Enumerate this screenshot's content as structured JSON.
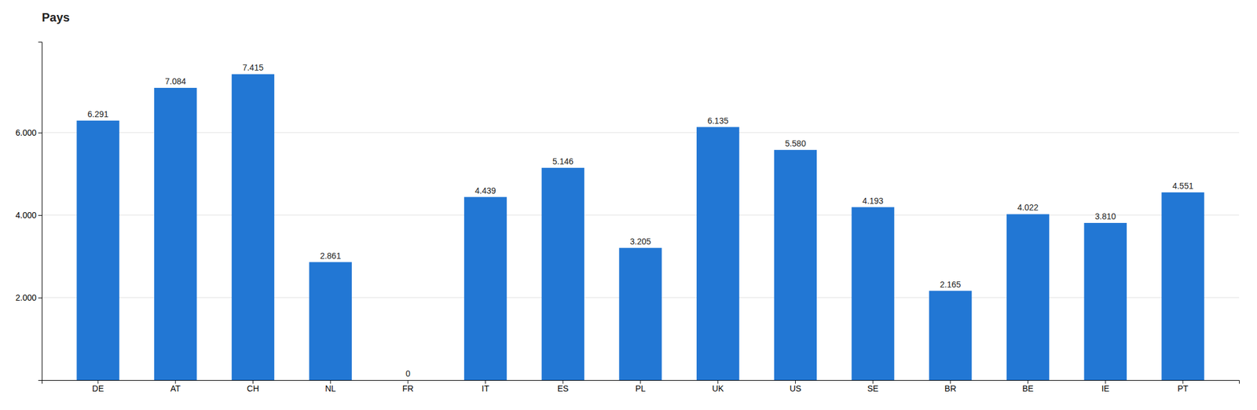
{
  "chart_data": {
    "type": "bar",
    "title": "Pays",
    "categories": [
      "DE",
      "AT",
      "CH",
      "NL",
      "FR",
      "IT",
      "ES",
      "PL",
      "UK",
      "US",
      "SE",
      "BR",
      "BE",
      "IE",
      "PT"
    ],
    "values": [
      6291,
      7084,
      7415,
      2861,
      0,
      4439,
      5146,
      3205,
      6135,
      5580,
      4193,
      2165,
      4022,
      3810,
      4551
    ],
    "value_labels": [
      "6.291",
      "7.084",
      "7.415",
      "2.861",
      "0",
      "4.439",
      "5.146",
      "3.205",
      "6.135",
      "5.580",
      "4.193",
      "2.165",
      "4.022",
      "3.810",
      "4.551"
    ],
    "color": "#2277d4",
    "ylim": [
      0,
      8200
    ],
    "yticks": [
      {
        "value": 2000,
        "label": "2.000"
      },
      {
        "value": 4000,
        "label": "4.000"
      },
      {
        "value": 6000,
        "label": "6.000"
      }
    ],
    "grid": true,
    "data_labels": true
  }
}
